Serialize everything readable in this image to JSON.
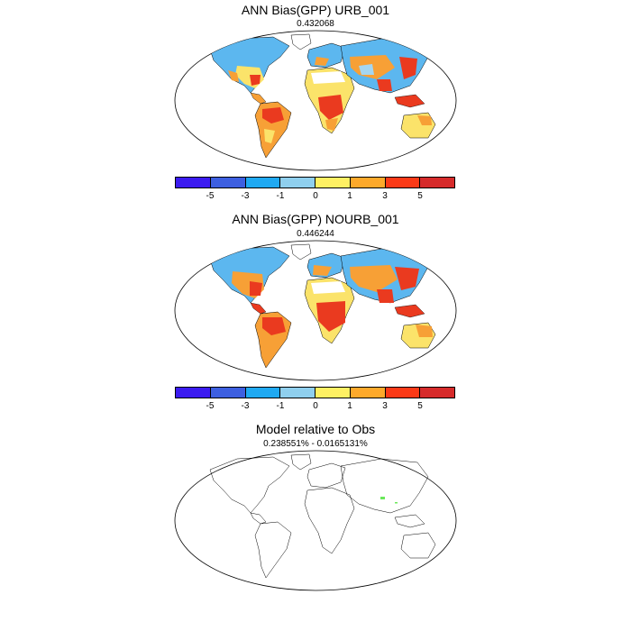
{
  "panels": [
    {
      "title": "ANN Bias(GPP) URB_001",
      "subtitle": "0.432068"
    },
    {
      "title": "ANN Bias(GPP) NOURB_001",
      "subtitle": "0.446244"
    },
    {
      "title": "Model relative to Obs",
      "subtitle": "0.238551% - 0.0165131%"
    }
  ],
  "colorbar": {
    "colors": [
      "#3b1bf0",
      "#3d5fe0",
      "#1fa9f2",
      "#8fcfee",
      "#fef063",
      "#fda92b",
      "#fb3a17",
      "#d62b2b"
    ],
    "tick_labels": [
      "-5",
      "-3",
      "-1",
      "0",
      "1",
      "3",
      "5"
    ]
  },
  "colors": {
    "land_blue": "#5cb7ef",
    "land_lightblue": "#a4d6f2",
    "land_yellow": "#fbe36a",
    "land_orange": "#f7a036",
    "land_red": "#ea3a1f",
    "green_marker": "#6be85b"
  }
}
